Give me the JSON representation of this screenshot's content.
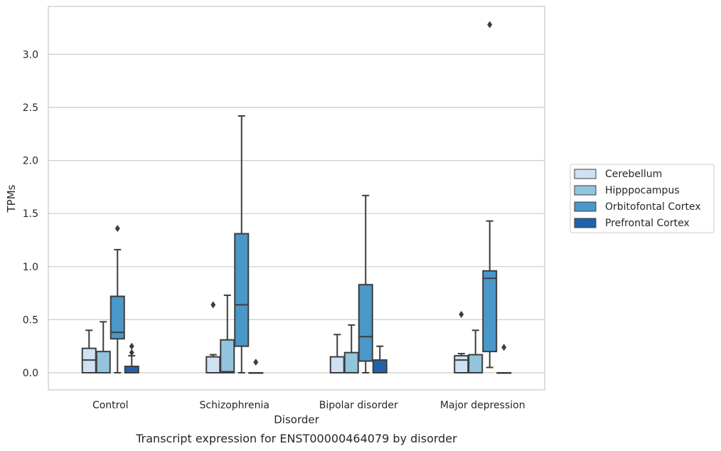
{
  "caption": "Transcript expression for ENST00000464079 by disorder",
  "chart_data": {
    "type": "box",
    "title": "",
    "xlabel": "Disorder",
    "ylabel": "TPMs",
    "categories": [
      "Control",
      "Schizophrenia",
      "Bipolar disorder",
      "Major depression"
    ],
    "ylim": [
      -0.16,
      3.45
    ],
    "yticks": [
      "0.0",
      "0.5",
      "1.0",
      "1.5",
      "2.0",
      "2.5",
      "3.0"
    ],
    "grid": "horizontal",
    "legend_position": "center-right-outside",
    "series": [
      {
        "name": "Cerebellum",
        "color": "#cfe1f2",
        "boxes": [
          {
            "q1": 0.0,
            "median": 0.12,
            "q3": 0.23,
            "whisker_low": 0.0,
            "whisker_high": 0.4,
            "outliers": []
          },
          {
            "q1": 0.0,
            "median": 0.0,
            "q3": 0.15,
            "whisker_low": 0.0,
            "whisker_high": 0.17,
            "outliers": [
              0.64
            ]
          },
          {
            "q1": 0.0,
            "median": 0.0,
            "q3": 0.15,
            "whisker_low": 0.0,
            "whisker_high": 0.36,
            "outliers": []
          },
          {
            "q1": 0.0,
            "median": 0.12,
            "q3": 0.16,
            "whisker_low": 0.0,
            "whisker_high": 0.18,
            "outliers": [
              0.55
            ]
          }
        ]
      },
      {
        "name": "Hipppocampus",
        "color": "#93c4de",
        "boxes": [
          {
            "q1": 0.0,
            "median": 0.0,
            "q3": 0.2,
            "whisker_low": 0.0,
            "whisker_high": 0.48,
            "outliers": []
          },
          {
            "q1": 0.0,
            "median": 0.01,
            "q3": 0.31,
            "whisker_low": 0.0,
            "whisker_high": 0.73,
            "outliers": []
          },
          {
            "q1": 0.0,
            "median": 0.0,
            "q3": 0.19,
            "whisker_low": 0.0,
            "whisker_high": 0.45,
            "outliers": []
          },
          {
            "q1": 0.0,
            "median": 0.0,
            "q3": 0.17,
            "whisker_low": 0.0,
            "whisker_high": 0.4,
            "outliers": []
          }
        ]
      },
      {
        "name": "Orbitofontal Cortex",
        "color": "#4a98c9",
        "boxes": [
          {
            "q1": 0.32,
            "median": 0.38,
            "q3": 0.72,
            "whisker_low": 0.0,
            "whisker_high": 1.16,
            "outliers": [
              1.36
            ]
          },
          {
            "q1": 0.25,
            "median": 0.64,
            "q3": 1.31,
            "whisker_low": 0.0,
            "whisker_high": 2.42,
            "outliers": []
          },
          {
            "q1": 0.11,
            "median": 0.34,
            "q3": 0.83,
            "whisker_low": 0.0,
            "whisker_high": 1.67,
            "outliers": []
          },
          {
            "q1": 0.2,
            "median": 0.89,
            "q3": 0.96,
            "whisker_low": 0.05,
            "whisker_high": 1.43,
            "outliers": [
              3.28
            ]
          }
        ]
      },
      {
        "name": "Prefrontal Cortex",
        "color": "#2163aa",
        "boxes": [
          {
            "q1": 0.0,
            "median": 0.0,
            "q3": 0.06,
            "whisker_low": 0.0,
            "whisker_high": 0.16,
            "outliers": [
              0.19,
              0.25
            ]
          },
          {
            "q1": 0.0,
            "median": 0.0,
            "q3": 0.0,
            "whisker_low": 0.0,
            "whisker_high": 0.0,
            "outliers": [
              0.1
            ]
          },
          {
            "q1": 0.0,
            "median": 0.0,
            "q3": 0.12,
            "whisker_low": 0.0,
            "whisker_high": 0.25,
            "outliers": []
          },
          {
            "q1": 0.0,
            "median": 0.0,
            "q3": 0.0,
            "whisker_low": 0.0,
            "whisker_high": 0.0,
            "outliers": [
              0.24
            ]
          }
        ]
      }
    ]
  }
}
